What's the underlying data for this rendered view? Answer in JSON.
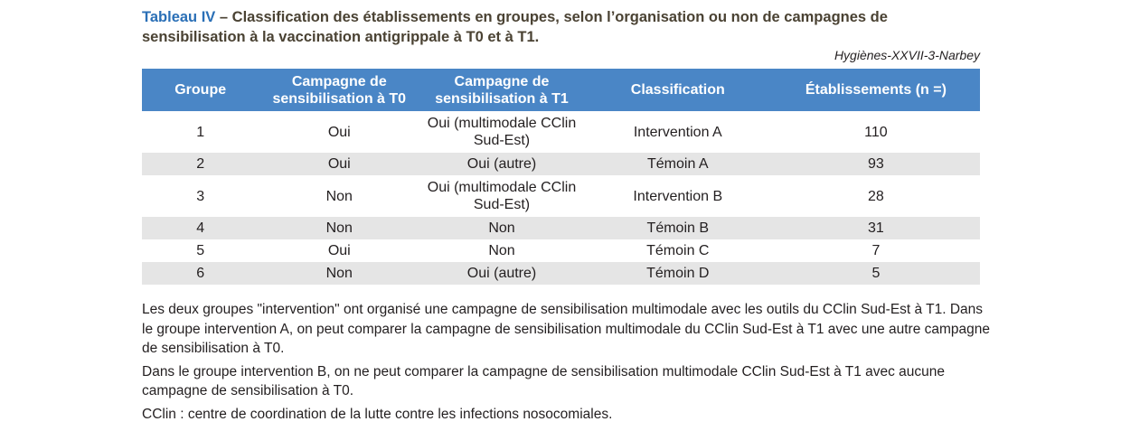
{
  "caption": {
    "lead": "Tableau IV",
    "text": " – Classification des établissements en groupes, selon l’organisation ou non de campagnes de sensibilisation à la vaccination antigrippale à T0 et à T1."
  },
  "source": "Hygiènes-XXVII-3-Narbey",
  "table": {
    "headers": [
      "Groupe",
      "Campagne de sensibilisation à T0",
      "Campagne de sensibilisation à T1",
      "Classification",
      "Établissements (n =)"
    ],
    "rows": [
      [
        "1",
        "Oui",
        "Oui (multimodale CClin Sud-Est)",
        "Intervention A",
        "110"
      ],
      [
        "2",
        "Oui",
        "Oui (autre)",
        "Témoin A",
        "93"
      ],
      [
        "3",
        "Non",
        "Oui (multimodale CClin Sud-Est)",
        "Intervention B",
        "28"
      ],
      [
        "4",
        "Non",
        "Non",
        "Témoin B",
        "31"
      ],
      [
        "5",
        "Oui",
        "Non",
        "Témoin C",
        "7"
      ],
      [
        "6",
        "Non",
        "Oui (autre)",
        "Témoin D",
        "5"
      ]
    ]
  },
  "notes": [
    "Les deux groupes \"intervention\" ont organisé une campagne de sensibilisation multimodale avec les outils du CClin Sud-Est à T1. Dans le groupe intervention A, on peut comparer la campagne de sensibilisation multimodale du CClin Sud-Est à T1 avec une autre campagne de sensibilisation à T0.",
    "Dans le groupe intervention B, on ne peut comparer la campagne de sensibilisation multimodale CClin Sud-Est à T1 avec aucune campagne de sensibilisation à T0.",
    "CClin : centre de coordination de la lutte contre les infections nosocomiales."
  ],
  "colors": {
    "header_bg": "#4a86c6",
    "caption_lead": "#2a6fb6",
    "caption_text": "#4a4233",
    "row_shade": "#e5e5e5"
  }
}
